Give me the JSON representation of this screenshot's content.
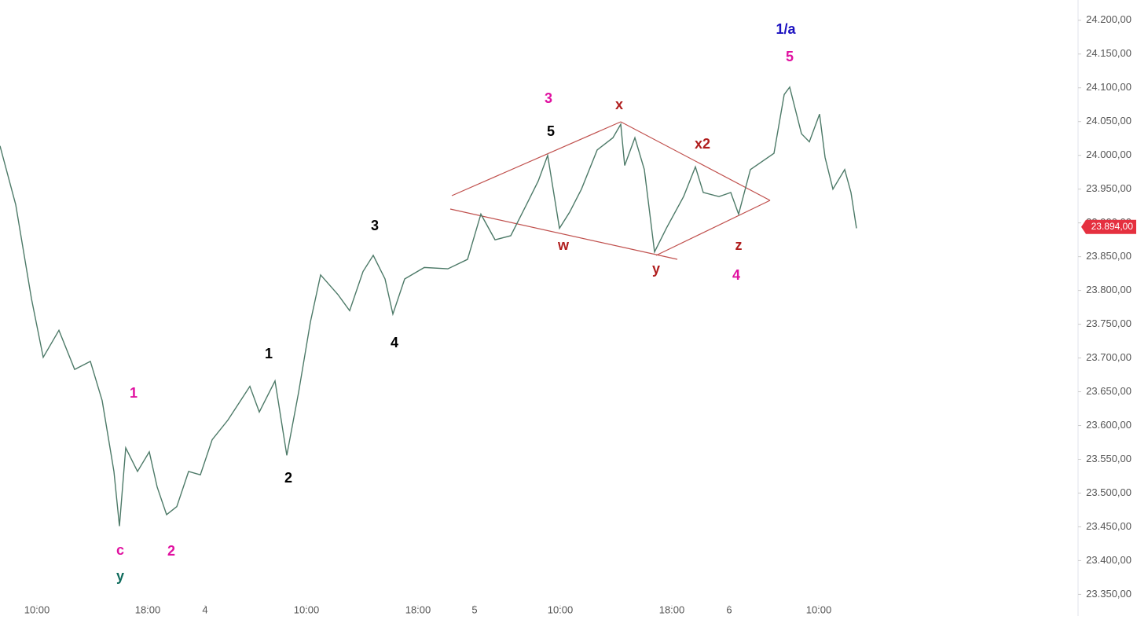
{
  "chart_data": {
    "type": "line",
    "color": "#4d7a68",
    "x": [
      0,
      20,
      40,
      55,
      75,
      95,
      115,
      130,
      145,
      152,
      160,
      175,
      190,
      200,
      212,
      225,
      240,
      255,
      270,
      290,
      318,
      330,
      350,
      365,
      380,
      395,
      408,
      430,
      445,
      462,
      475,
      490,
      500,
      515,
      540,
      570,
      595,
      612,
      630,
      650,
      670,
      685,
      697,
      712,
      725,
      740,
      760,
      780,
      790,
      795,
      808,
      820,
      833,
      848,
      870,
      885,
      895,
      915,
      930,
      940,
      955,
      985,
      998,
      1005,
      1020,
      1030,
      1043,
      1050,
      1060,
      1075,
      1083,
      1090
    ],
    "values": [
      24014,
      23927,
      23788,
      23701,
      23741,
      23683,
      23695,
      23637,
      23532,
      23451,
      23567,
      23532,
      23561,
      23509,
      23468,
      23480,
      23532,
      23527,
      23579,
      23608,
      23658,
      23620,
      23666,
      23556,
      23649,
      23753,
      23823,
      23794,
      23770,
      23828,
      23852,
      23817,
      23765,
      23817,
      23834,
      23832,
      23846,
      23913,
      23875,
      23881,
      23927,
      23962,
      24000,
      23892,
      23916,
      23950,
      24008,
      24026,
      24046,
      23985,
      24026,
      23979,
      23857,
      23892,
      23939,
      23983,
      23945,
      23939,
      23945,
      23913,
      23979,
      24003,
      24090,
      24101,
      24032,
      24020,
      24061,
      23997,
      23950,
      23979,
      23945,
      23892
    ],
    "xlim": [
      0,
      1370
    ],
    "xticks": [
      {
        "value": 47,
        "label": "10:00"
      },
      {
        "value": 188,
        "label": "18:00"
      },
      {
        "value": 261,
        "label": "4"
      },
      {
        "value": 390,
        "label": "10:00"
      },
      {
        "value": 532,
        "label": "18:00"
      },
      {
        "value": 604,
        "label": "5"
      },
      {
        "value": 713,
        "label": "10:00"
      },
      {
        "value": 855,
        "label": "18:00"
      },
      {
        "value": 928,
        "label": "6"
      },
      {
        "value": 1042,
        "label": "10:00"
      }
    ],
    "ylim": [
      23340,
      24230
    ],
    "yticks": [
      {
        "value": 23350,
        "label": "23.350,00"
      },
      {
        "value": 23400,
        "label": "23.400,00"
      },
      {
        "value": 23450,
        "label": "23.450,00"
      },
      {
        "value": 23500,
        "label": "23.500,00"
      },
      {
        "value": 23550,
        "label": "23.550,00"
      },
      {
        "value": 23600,
        "label": "23.600,00"
      },
      {
        "value": 23650,
        "label": "23.650,00"
      },
      {
        "value": 23700,
        "label": "23.700,00"
      },
      {
        "value": 23750,
        "label": "23.750,00"
      },
      {
        "value": 23800,
        "label": "23.800,00"
      },
      {
        "value": 23850,
        "label": "23.850,00"
      },
      {
        "value": 23900,
        "label": "23.900,00"
      },
      {
        "value": 23950,
        "label": "23.950,00"
      },
      {
        "value": 24000,
        "label": "24.000,00"
      },
      {
        "value": 24050,
        "label": "24.050,00"
      },
      {
        "value": 24100,
        "label": "24.100,00"
      },
      {
        "value": 24150,
        "label": "24.150,00"
      },
      {
        "value": 24200,
        "label": "24.200,00"
      }
    ],
    "last_price": {
      "value": 23894,
      "label": "23.894,00",
      "color": "#e5303f"
    },
    "annotations": [
      {
        "text": "c",
        "color": "#e010a0"
      },
      {
        "text": "y",
        "color": "#0e6b5c"
      },
      {
        "text": "1",
        "color": "#e010a0"
      },
      {
        "text": "2",
        "color": "#e010a0"
      },
      {
        "text": "1",
        "color": "#000000"
      },
      {
        "text": "2",
        "color": "#000000"
      },
      {
        "text": "3",
        "color": "#000000"
      },
      {
        "text": "4",
        "color": "#000000"
      },
      {
        "text": "5",
        "color": "#000000"
      },
      {
        "text": "3",
        "color": "#e010a0"
      },
      {
        "text": "x",
        "color": "#b01e1e"
      },
      {
        "text": "w",
        "color": "#b01e1e"
      },
      {
        "text": "y",
        "color": "#b01e1e"
      },
      {
        "text": "x2",
        "color": "#b01e1e"
      },
      {
        "text": "z",
        "color": "#b01e1e"
      },
      {
        "text": "4",
        "color": "#e010a0"
      },
      {
        "text": "5",
        "color": "#e010a0"
      },
      {
        "text": "1/a",
        "color": "#1a10c0"
      }
    ]
  }
}
